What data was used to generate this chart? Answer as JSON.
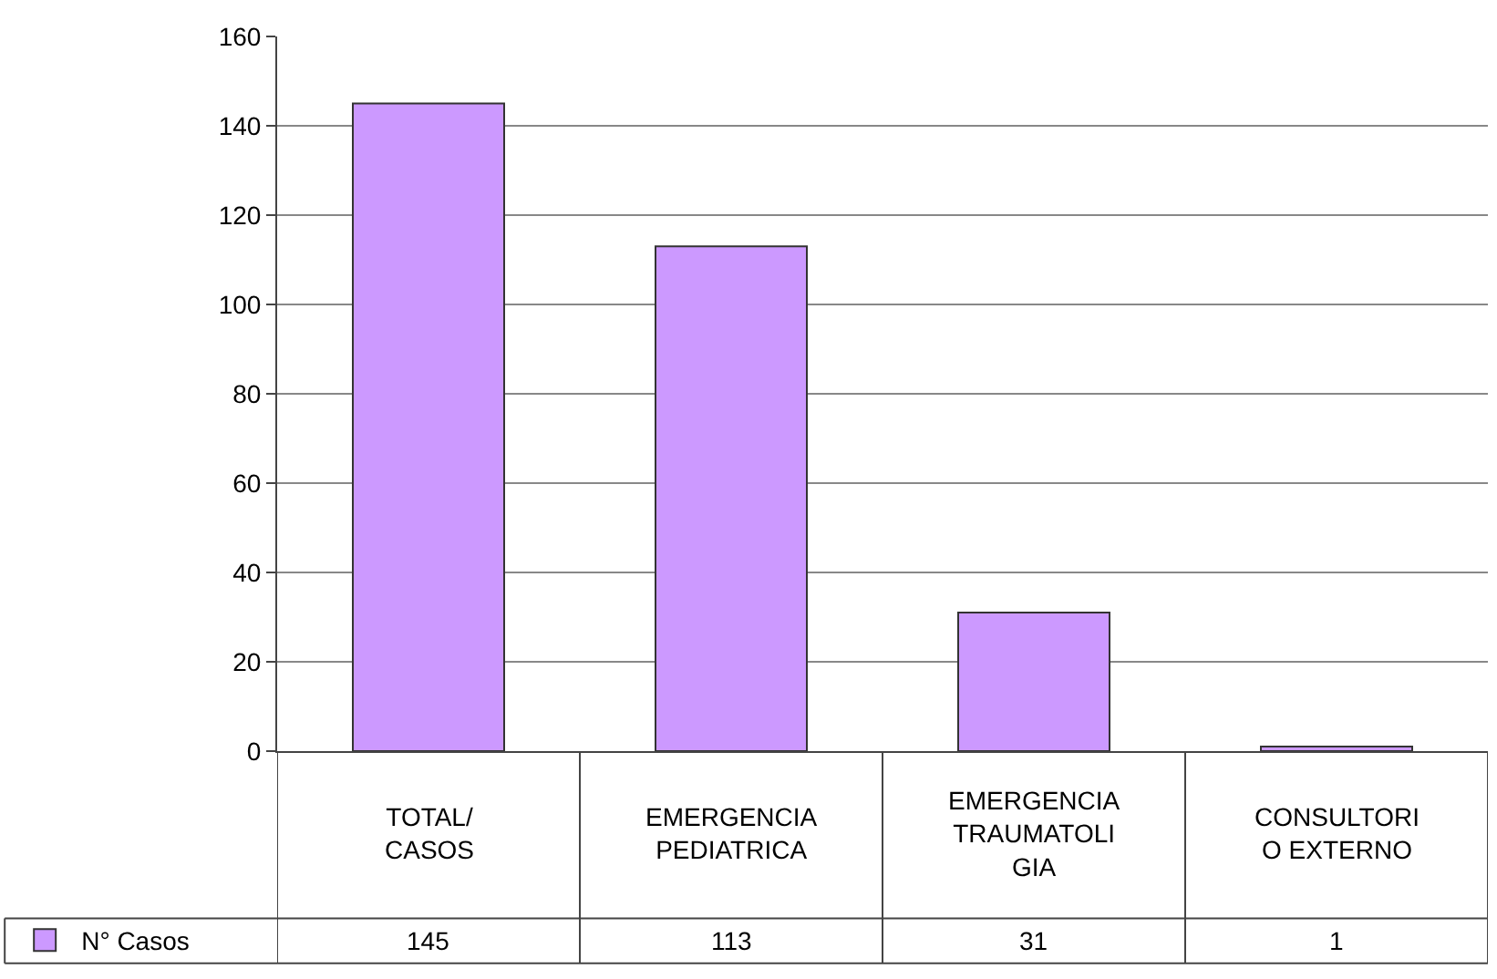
{
  "chart_data": {
    "type": "bar",
    "categories": [
      "TOTAL/ CASOS",
      "EMERGENCIA PEDIATRICA",
      "EMERGENCIA TRAUMATOLIGIA",
      "CONSULTORIO EXTERNO"
    ],
    "series": [
      {
        "name": "N° Casos",
        "color": "#cc99ff",
        "values": [
          145,
          113,
          31,
          1
        ]
      }
    ],
    "ylim": [
      0,
      160
    ],
    "yticks": [
      0,
      20,
      40,
      60,
      80,
      100,
      120,
      140,
      160
    ],
    "grid": "y",
    "legend": "bottom left",
    "data_labels": true
  }
}
